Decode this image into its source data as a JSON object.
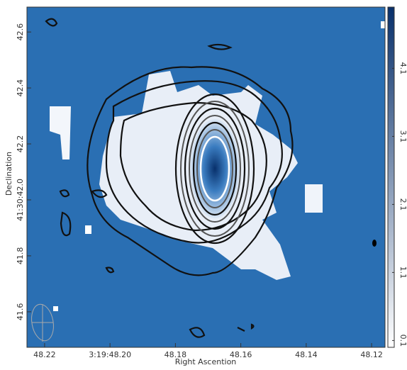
{
  "chart_data": {
    "type": "image",
    "xlabel": "Right Ascention",
    "ylabel": "Declination",
    "xlim": [
      48.2254,
      48.1159
    ],
    "xticks": [
      48.22,
      {
        "value": 48.2,
        "label": "3:19:48.20"
      },
      48.18,
      48.16,
      48.14,
      48.12
    ],
    "ylim": [
      41.473,
      42.689
    ],
    "yticks": [
      41.6,
      41.8,
      {
        "value": 42.0,
        "label": "41:30:42.0"
      },
      42.2,
      42.4,
      42.6
    ],
    "colorbar": {
      "clim": [
        0,
        5
      ],
      "ticks": [
        0.1,
        1.1,
        2.1,
        3.1,
        4.1
      ],
      "colors": [
        "#ffffff",
        "#08306b"
      ]
    },
    "background": "#2a6fb3"
  }
}
